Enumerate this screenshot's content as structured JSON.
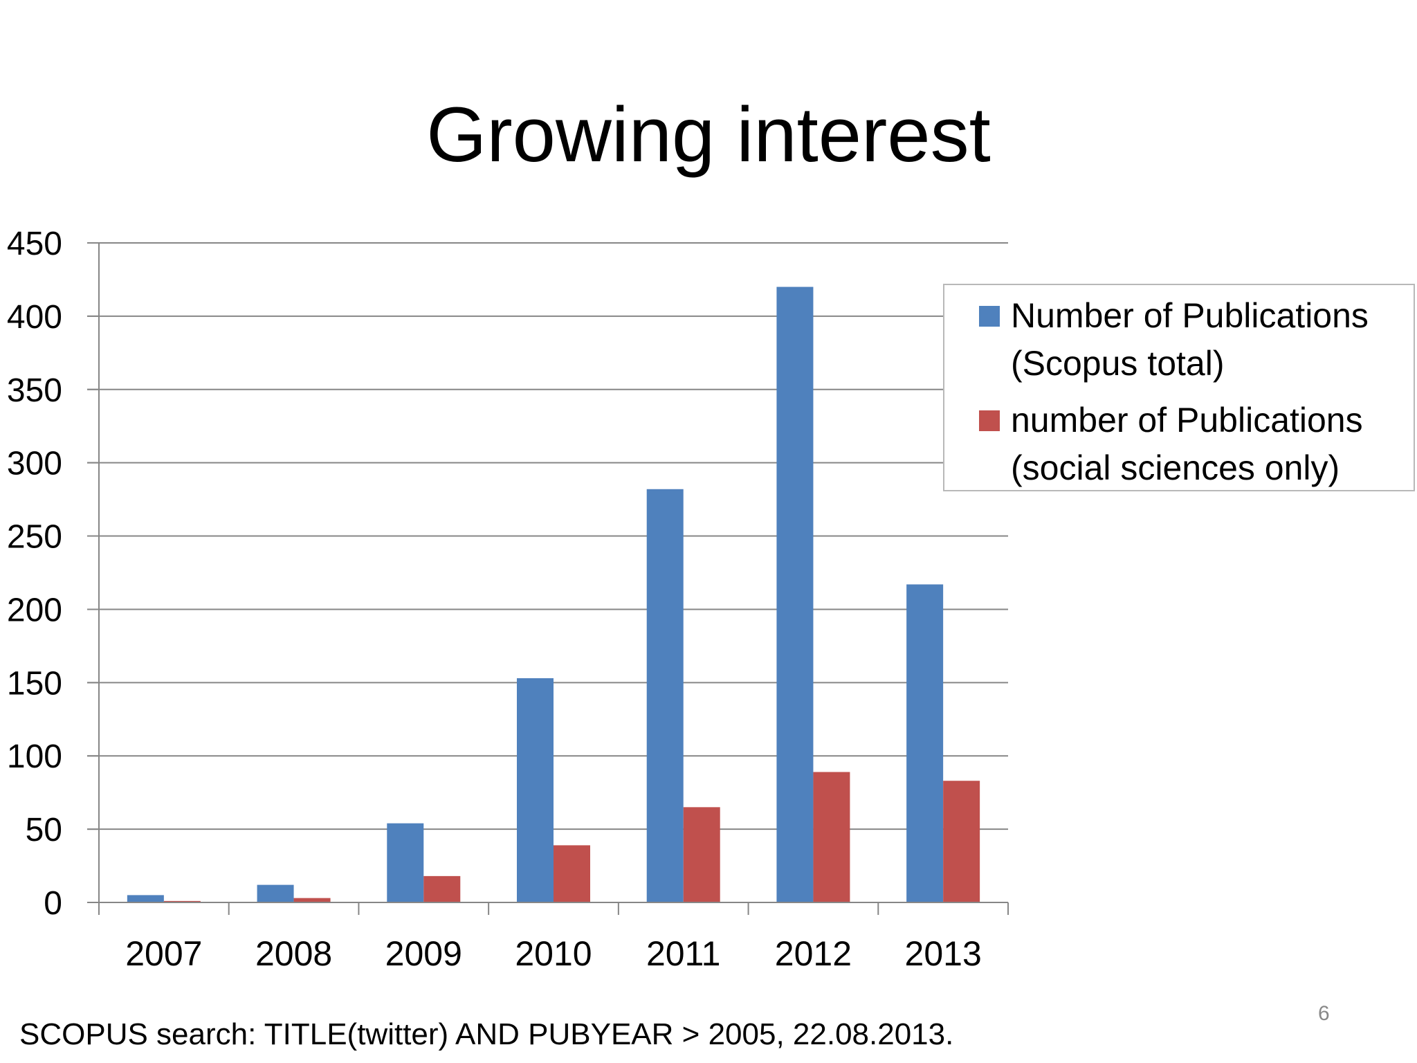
{
  "slide": {
    "title": "Growing interest",
    "source_note": "SCOPUS search: TITLE(twitter) AND PUBYEAR > 2005, 22.08.2013.",
    "page_number": "6"
  },
  "colors": {
    "series_total": "#4f81bd",
    "series_social": "#c0504d",
    "gridline": "#868686",
    "legend_border": "#b8b8b8"
  },
  "chart_data": {
    "type": "bar",
    "title": "",
    "xlabel": "",
    "ylabel": "",
    "categories": [
      "2007",
      "2008",
      "2009",
      "2010",
      "2011",
      "2012",
      "2013"
    ],
    "ylim": [
      0,
      450
    ],
    "y_ticks": [
      "0",
      "50",
      "100",
      "150",
      "200",
      "250",
      "300",
      "350",
      "400",
      "450"
    ],
    "grid": true,
    "legend_position": "right",
    "series": [
      {
        "name": "Number of Publications (Scopus total)",
        "legend_lines": [
          "Number of Publications",
          "(Scopus total)"
        ],
        "color": "#4f81bd",
        "values": [
          5,
          12,
          54,
          153,
          282,
          420,
          217
        ]
      },
      {
        "name": "number of Publications (social sciences only)",
        "legend_lines": [
          "number of Publications",
          "(social sciences only)"
        ],
        "color": "#c0504d",
        "values": [
          1,
          3,
          18,
          39,
          65,
          89,
          83
        ]
      }
    ]
  }
}
